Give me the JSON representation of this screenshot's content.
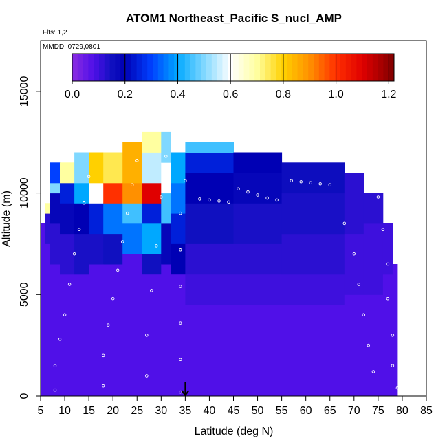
{
  "chart_data": {
    "type": "heatmap",
    "title": "ATOM1 Northeast_Pacific S_nucl_AMP",
    "annotations": [
      "Flts: 1,2",
      "MMDD: 0729,0801"
    ],
    "xlabel": "Latitude (deg N)",
    "ylabel": "Altitude (m)",
    "xlim": [
      5,
      85
    ],
    "ylim": [
      0,
      17500
    ],
    "xticks": [
      5,
      10,
      15,
      20,
      25,
      30,
      35,
      40,
      45,
      50,
      55,
      60,
      65,
      70,
      75,
      80,
      85
    ],
    "yticks": [
      0,
      5000,
      10000,
      15000
    ],
    "grid": false,
    "colorbar": {
      "placement": "top inside",
      "min": 0.0,
      "max": 1.22,
      "ticks": [
        0.0,
        0.2,
        0.4,
        0.6,
        0.8,
        1.0,
        1.2
      ],
      "stops": [
        {
          "v": 0.0,
          "c": "#8a2be2"
        },
        {
          "v": 0.08,
          "c": "#5010e8"
        },
        {
          "v": 0.15,
          "c": "#1010c0"
        },
        {
          "v": 0.2,
          "c": "#0000b4"
        },
        {
          "v": 0.3,
          "c": "#0040ff"
        },
        {
          "v": 0.4,
          "c": "#00a8ff"
        },
        {
          "v": 0.5,
          "c": "#80d8ff"
        },
        {
          "v": 0.6,
          "c": "#ffffff"
        },
        {
          "v": 0.7,
          "c": "#ffffa0"
        },
        {
          "v": 0.8,
          "c": "#ffd000"
        },
        {
          "v": 0.9,
          "c": "#ff9000"
        },
        {
          "v": 1.0,
          "c": "#ff3000"
        },
        {
          "v": 1.1,
          "c": "#e00000"
        },
        {
          "v": 1.22,
          "c": "#800000"
        }
      ]
    },
    "marker": {
      "x": 35,
      "y": 0,
      "label": "arrow"
    },
    "columns": [
      {
        "x0": 5,
        "x1": 6,
        "ytop": 8500,
        "blocks": [
          [
            0,
            8500,
            0.08
          ]
        ]
      },
      {
        "x0": 6,
        "x1": 7,
        "ytop": 9500,
        "blocks": [
          [
            0,
            7500,
            0.08
          ],
          [
            7500,
            9000,
            0.12
          ],
          [
            9000,
            9500,
            0.7
          ]
        ]
      },
      {
        "x0": 7,
        "x1": 9,
        "ytop": 11500,
        "blocks": [
          [
            0,
            6500,
            0.08
          ],
          [
            6500,
            8500,
            0.12
          ],
          [
            8500,
            10000,
            0.18
          ],
          [
            10000,
            10500,
            0.5
          ],
          [
            10500,
            11500,
            0.3
          ]
        ]
      },
      {
        "x0": 9,
        "x1": 12,
        "ytop": 11500,
        "blocks": [
          [
            0,
            6000,
            0.08
          ],
          [
            6000,
            8000,
            0.12
          ],
          [
            8000,
            9500,
            0.18
          ],
          [
            9500,
            10500,
            0.25
          ],
          [
            10500,
            11500,
            0.7
          ]
        ]
      },
      {
        "x0": 12,
        "x1": 15,
        "ytop": 12000,
        "blocks": [
          [
            0,
            6000,
            0.08
          ],
          [
            6000,
            8000,
            0.14
          ],
          [
            8000,
            9500,
            0.2
          ],
          [
            9500,
            10500,
            0.4
          ],
          [
            10500,
            12000,
            0.5
          ]
        ]
      },
      {
        "x0": 15,
        "x1": 18,
        "ytop": 12000,
        "blocks": [
          [
            0,
            6500,
            0.08
          ],
          [
            6500,
            8000,
            0.14
          ],
          [
            8000,
            9500,
            0.25
          ],
          [
            9500,
            10500,
            0.6
          ],
          [
            10500,
            12000,
            0.8
          ]
        ]
      },
      {
        "x0": 18,
        "x1": 22,
        "ytop": 12000,
        "blocks": [
          [
            0,
            6500,
            0.08
          ],
          [
            6500,
            8000,
            0.15
          ],
          [
            8000,
            9500,
            0.35
          ],
          [
            9500,
            10500,
            1.0
          ],
          [
            10500,
            12000,
            0.75
          ]
        ]
      },
      {
        "x0": 22,
        "x1": 26,
        "ytop": 12500,
        "blocks": [
          [
            0,
            7000,
            0.08
          ],
          [
            7000,
            8500,
            0.35
          ],
          [
            8500,
            9500,
            0.45
          ],
          [
            9500,
            10500,
            0.9
          ],
          [
            10500,
            12500,
            0.85
          ]
        ]
      },
      {
        "x0": 26,
        "x1": 30,
        "ytop": 13000,
        "blocks": [
          [
            0,
            6000,
            0.08
          ],
          [
            6000,
            7000,
            0.15
          ],
          [
            7000,
            8500,
            0.4
          ],
          [
            8500,
            9500,
            0.25
          ],
          [
            9500,
            10500,
            1.1
          ],
          [
            10500,
            12000,
            0.55
          ],
          [
            12000,
            13000,
            0.7
          ]
        ]
      },
      {
        "x0": 30,
        "x1": 32,
        "ytop": 13000,
        "blocks": [
          [
            0,
            6500,
            0.08
          ],
          [
            6500,
            8500,
            0.18
          ],
          [
            8500,
            10000,
            0.45
          ],
          [
            10000,
            11500,
            0.6
          ],
          [
            11500,
            13000,
            0.5
          ]
        ]
      },
      {
        "x0": 32,
        "x1": 35,
        "ytop": 12000,
        "blocks": [
          [
            0,
            6000,
            0.08
          ],
          [
            6000,
            7500,
            0.2
          ],
          [
            7500,
            9000,
            0.25
          ],
          [
            9000,
            10500,
            0.35
          ],
          [
            10500,
            12000,
            0.4
          ]
        ]
      },
      {
        "x0": 35,
        "x1": 45,
        "ytop": 12500,
        "blocks": [
          [
            0,
            4500,
            0.08
          ],
          [
            4500,
            6000,
            0.1
          ],
          [
            6000,
            7500,
            0.12
          ],
          [
            7500,
            9500,
            0.15
          ],
          [
            9500,
            11000,
            0.2
          ],
          [
            11000,
            12000,
            0.25
          ],
          [
            12000,
            12500,
            0.45
          ]
        ]
      },
      {
        "x0": 45,
        "x1": 55,
        "ytop": 12000,
        "blocks": [
          [
            0,
            4500,
            0.08
          ],
          [
            4500,
            6000,
            0.1
          ],
          [
            6000,
            7500,
            0.12
          ],
          [
            7500,
            9500,
            0.14
          ],
          [
            9500,
            11000,
            0.18
          ],
          [
            11000,
            12000,
            0.2
          ]
        ]
      },
      {
        "x0": 55,
        "x1": 68,
        "ytop": 11500,
        "blocks": [
          [
            0,
            4500,
            0.08
          ],
          [
            4500,
            6000,
            0.1
          ],
          [
            6000,
            8000,
            0.12
          ],
          [
            8000,
            10000,
            0.14
          ],
          [
            10000,
            11500,
            0.16
          ]
        ]
      },
      {
        "x0": 68,
        "x1": 72,
        "ytop": 11000,
        "blocks": [
          [
            0,
            5000,
            0.08
          ],
          [
            5000,
            8000,
            0.1
          ],
          [
            8000,
            11000,
            0.12
          ]
        ]
      },
      {
        "x0": 72,
        "x1": 76,
        "ytop": 10000,
        "blocks": [
          [
            0,
            5000,
            0.08
          ],
          [
            5000,
            8500,
            0.1
          ],
          [
            8500,
            10000,
            0.12
          ]
        ]
      },
      {
        "x0": 76,
        "x1": 78,
        "ytop": 8500,
        "blocks": [
          [
            0,
            6000,
            0.08
          ],
          [
            6000,
            8500,
            0.1
          ]
        ]
      },
      {
        "x0": 78,
        "x1": 79,
        "ytop": 6500,
        "blocks": [
          [
            0,
            6500,
            0.08
          ]
        ]
      }
    ],
    "flight_track": [
      [
        8,
        300
      ],
      [
        8,
        1500
      ],
      [
        9,
        2800
      ],
      [
        10,
        4000
      ],
      [
        11,
        5500
      ],
      [
        12,
        7000
      ],
      [
        13,
        8200
      ],
      [
        14,
        9500
      ],
      [
        15,
        10800
      ],
      [
        18,
        500
      ],
      [
        18,
        2000
      ],
      [
        19,
        3500
      ],
      [
        20,
        4800
      ],
      [
        21,
        6200
      ],
      [
        22,
        7600
      ],
      [
        23,
        9000
      ],
      [
        24,
        10400
      ],
      [
        25,
        11600
      ],
      [
        27,
        1000
      ],
      [
        27,
        3000
      ],
      [
        28,
        5200
      ],
      [
        29,
        7400
      ],
      [
        30,
        9800
      ],
      [
        31,
        11800
      ],
      [
        34,
        200
      ],
      [
        34,
        1800
      ],
      [
        34,
        3600
      ],
      [
        34,
        5400
      ],
      [
        34,
        7200
      ],
      [
        34,
        9000
      ],
      [
        35,
        10600
      ],
      [
        38,
        9700
      ],
      [
        40,
        9650
      ],
      [
        42,
        9600
      ],
      [
        44,
        9550
      ],
      [
        46,
        10200
      ],
      [
        48,
        10050
      ],
      [
        50,
        9900
      ],
      [
        52,
        9750
      ],
      [
        54,
        9650
      ],
      [
        57,
        10600
      ],
      [
        59,
        10550
      ],
      [
        61,
        10500
      ],
      [
        63,
        10450
      ],
      [
        65,
        10400
      ],
      [
        68,
        8500
      ],
      [
        70,
        7000
      ],
      [
        71,
        5500
      ],
      [
        72,
        4000
      ],
      [
        73,
        2500
      ],
      [
        74,
        1200
      ],
      [
        75,
        9800
      ],
      [
        76,
        8200
      ],
      [
        77,
        6500
      ],
      [
        77,
        4800
      ],
      [
        78,
        3000
      ],
      [
        78,
        1500
      ],
      [
        79,
        400
      ]
    ]
  }
}
